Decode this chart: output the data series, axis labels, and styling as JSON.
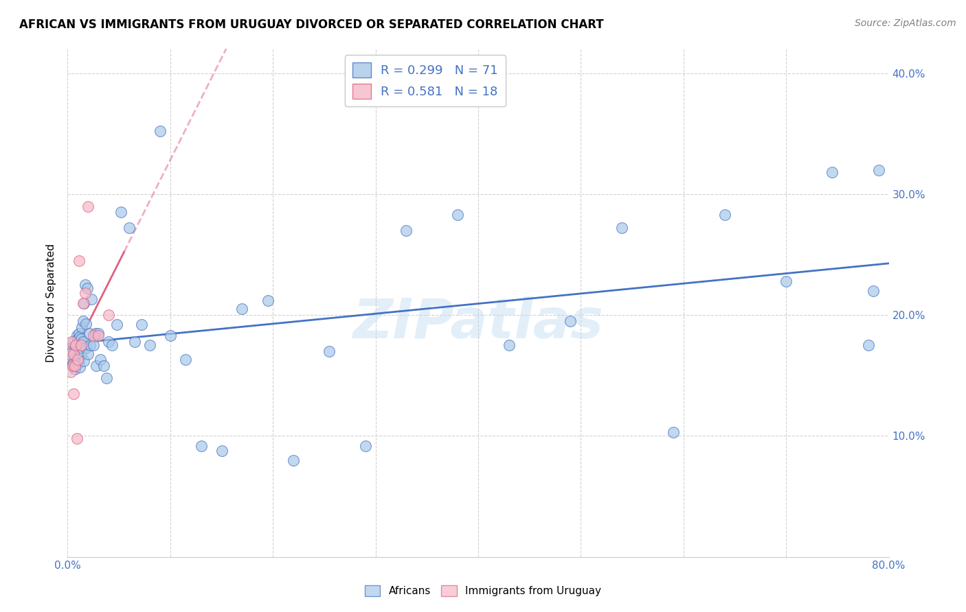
{
  "title": "AFRICAN VS IMMIGRANTS FROM URUGUAY DIVORCED OR SEPARATED CORRELATION CHART",
  "source": "Source: ZipAtlas.com",
  "ylabel": "Divorced or Separated",
  "xlim": [
    0.0,
    0.8
  ],
  "ylim": [
    0.0,
    0.42
  ],
  "legend1_label": "R = 0.299   N = 71",
  "legend2_label": "R = 0.581   N = 18",
  "africans_color": "#a8c8e8",
  "uruguay_color": "#f4b8c8",
  "trend_african_color": "#4472C4",
  "trend_uruguay_color": "#e06080",
  "watermark": "ZIPatlas",
  "africans_x": [
    0.003,
    0.004,
    0.005,
    0.005,
    0.006,
    0.006,
    0.007,
    0.007,
    0.008,
    0.008,
    0.009,
    0.009,
    0.01,
    0.01,
    0.011,
    0.011,
    0.012,
    0.012,
    0.013,
    0.013,
    0.014,
    0.014,
    0.015,
    0.015,
    0.016,
    0.016,
    0.017,
    0.018,
    0.018,
    0.019,
    0.02,
    0.021,
    0.022,
    0.023,
    0.025,
    0.027,
    0.028,
    0.03,
    0.032,
    0.035,
    0.038,
    0.04,
    0.043,
    0.048,
    0.052,
    0.06,
    0.065,
    0.072,
    0.08,
    0.09,
    0.1,
    0.115,
    0.13,
    0.15,
    0.17,
    0.195,
    0.22,
    0.255,
    0.29,
    0.33,
    0.38,
    0.43,
    0.49,
    0.54,
    0.59,
    0.64,
    0.7,
    0.745,
    0.78,
    0.785,
    0.79
  ],
  "africans_y": [
    0.168,
    0.163,
    0.16,
    0.172,
    0.157,
    0.178,
    0.155,
    0.173,
    0.158,
    0.175,
    0.162,
    0.183,
    0.16,
    0.18,
    0.162,
    0.185,
    0.157,
    0.182,
    0.168,
    0.18,
    0.173,
    0.19,
    0.178,
    0.195,
    0.162,
    0.21,
    0.225,
    0.173,
    0.193,
    0.222,
    0.168,
    0.185,
    0.175,
    0.213,
    0.175,
    0.185,
    0.158,
    0.185,
    0.163,
    0.158,
    0.148,
    0.178,
    0.175,
    0.192,
    0.285,
    0.272,
    0.178,
    0.192,
    0.175,
    0.352,
    0.183,
    0.163,
    0.092,
    0.088,
    0.205,
    0.212,
    0.08,
    0.17,
    0.092,
    0.27,
    0.283,
    0.175,
    0.195,
    0.272,
    0.103,
    0.283,
    0.228,
    0.318,
    0.175,
    0.22,
    0.32
  ],
  "uruguay_x": [
    0.002,
    0.003,
    0.004,
    0.005,
    0.006,
    0.006,
    0.007,
    0.008,
    0.009,
    0.01,
    0.011,
    0.013,
    0.015,
    0.017,
    0.02,
    0.025,
    0.03,
    0.04
  ],
  "uruguay_y": [
    0.168,
    0.153,
    0.178,
    0.158,
    0.135,
    0.168,
    0.158,
    0.175,
    0.098,
    0.163,
    0.245,
    0.175,
    0.21,
    0.218,
    0.29,
    0.183,
    0.183,
    0.2
  ]
}
